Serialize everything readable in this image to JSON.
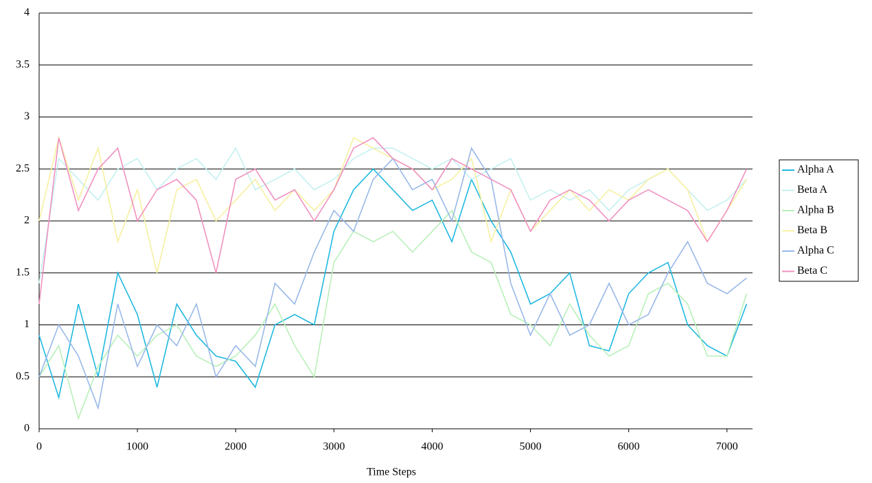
{
  "chart_data": {
    "type": "line",
    "x_label": "Time Steps",
    "x": [
      0,
      200,
      400,
      600,
      800,
      1000,
      1200,
      1400,
      1600,
      1800,
      2000,
      2200,
      2400,
      2600,
      2800,
      3000,
      3200,
      3400,
      3600,
      3800,
      4000,
      4200,
      4400,
      4600,
      4800,
      5000,
      5200,
      5400,
      5600,
      5800,
      6000,
      6200,
      6400,
      6600,
      6800,
      7000,
      7200
    ],
    "series": [
      {
        "name": "Alpha A",
        "color": "#1fb8e0",
        "values": [
          0.9,
          0.3,
          1.2,
          0.5,
          1.5,
          1.1,
          0.4,
          1.2,
          0.9,
          0.7,
          0.65,
          0.4,
          1.0,
          1.1,
          1.0,
          1.9,
          2.3,
          2.5,
          2.3,
          2.1,
          2.2,
          1.8,
          2.4,
          2.0,
          1.7,
          1.2,
          1.3,
          1.5,
          0.8,
          0.75,
          1.3,
          1.5,
          1.6,
          1.0,
          0.8,
          0.7,
          1.2
        ]
      },
      {
        "name": "Beta A",
        "color": "#c4f0f0",
        "values": [
          1.4,
          2.6,
          2.4,
          2.2,
          2.5,
          2.6,
          2.3,
          2.5,
          2.6,
          2.4,
          2.7,
          2.3,
          2.4,
          2.5,
          2.3,
          2.4,
          2.6,
          2.7,
          2.7,
          2.6,
          2.5,
          2.6,
          2.4,
          2.5,
          2.6,
          2.2,
          2.3,
          2.2,
          2.3,
          2.1,
          2.3,
          2.4,
          2.5,
          2.3,
          2.1,
          2.2,
          2.4
        ]
      },
      {
        "name": "Alpha B",
        "color": "#b8f0b8",
        "values": [
          0.5,
          0.8,
          0.1,
          0.6,
          0.9,
          0.7,
          0.9,
          1.0,
          0.7,
          0.6,
          0.7,
          0.9,
          1.2,
          0.8,
          0.5,
          1.6,
          1.9,
          1.8,
          1.9,
          1.7,
          1.9,
          2.1,
          1.7,
          1.6,
          1.1,
          1.0,
          0.8,
          1.2,
          0.9,
          0.7,
          0.8,
          1.3,
          1.4,
          1.2,
          0.7,
          0.7,
          1.3
        ]
      },
      {
        "name": "Beta B",
        "color": "#f6f0a0",
        "values": [
          2.0,
          2.8,
          2.2,
          2.7,
          1.8,
          2.3,
          1.5,
          2.3,
          2.4,
          2.0,
          2.2,
          2.4,
          2.1,
          2.3,
          2.1,
          2.3,
          2.8,
          2.7,
          2.6,
          2.5,
          2.3,
          2.4,
          2.6,
          1.8,
          2.3,
          1.9,
          2.1,
          2.3,
          2.1,
          2.3,
          2.2,
          2.4,
          2.5,
          2.3,
          1.8,
          2.1,
          2.4
        ]
      },
      {
        "name": "Alpha C",
        "color": "#98b8e8",
        "values": [
          0.5,
          1.0,
          0.7,
          0.2,
          1.2,
          0.6,
          1.0,
          0.8,
          1.2,
          0.5,
          0.8,
          0.6,
          1.4,
          1.2,
          1.7,
          2.1,
          1.9,
          2.4,
          2.6,
          2.3,
          2.4,
          2.0,
          2.7,
          2.4,
          1.4,
          0.9,
          1.3,
          0.9,
          1.0,
          1.4,
          1.0,
          1.1,
          1.5,
          1.8,
          1.4,
          1.3,
          1.45
        ]
      },
      {
        "name": "Beta C",
        "color": "#f090c0",
        "values": [
          1.2,
          2.8,
          2.1,
          2.5,
          2.7,
          2.0,
          2.3,
          2.4,
          2.2,
          1.5,
          2.4,
          2.5,
          2.2,
          2.3,
          2.0,
          2.3,
          2.7,
          2.8,
          2.6,
          2.5,
          2.3,
          2.6,
          2.5,
          2.4,
          2.3,
          1.9,
          2.2,
          2.3,
          2.2,
          2.0,
          2.2,
          2.3,
          2.2,
          2.1,
          1.8,
          2.1,
          2.5
        ]
      }
    ],
    "xlim": [
      0,
      7260
    ],
    "xticks": [
      0,
      1000,
      2000,
      3000,
      4000,
      5000,
      6000,
      7000
    ],
    "ylim": [
      0,
      4
    ],
    "yticks": [
      0,
      0.5,
      1,
      1.5,
      2,
      2.5,
      3,
      3.5,
      4
    ],
    "grid": true,
    "legend": "right"
  }
}
